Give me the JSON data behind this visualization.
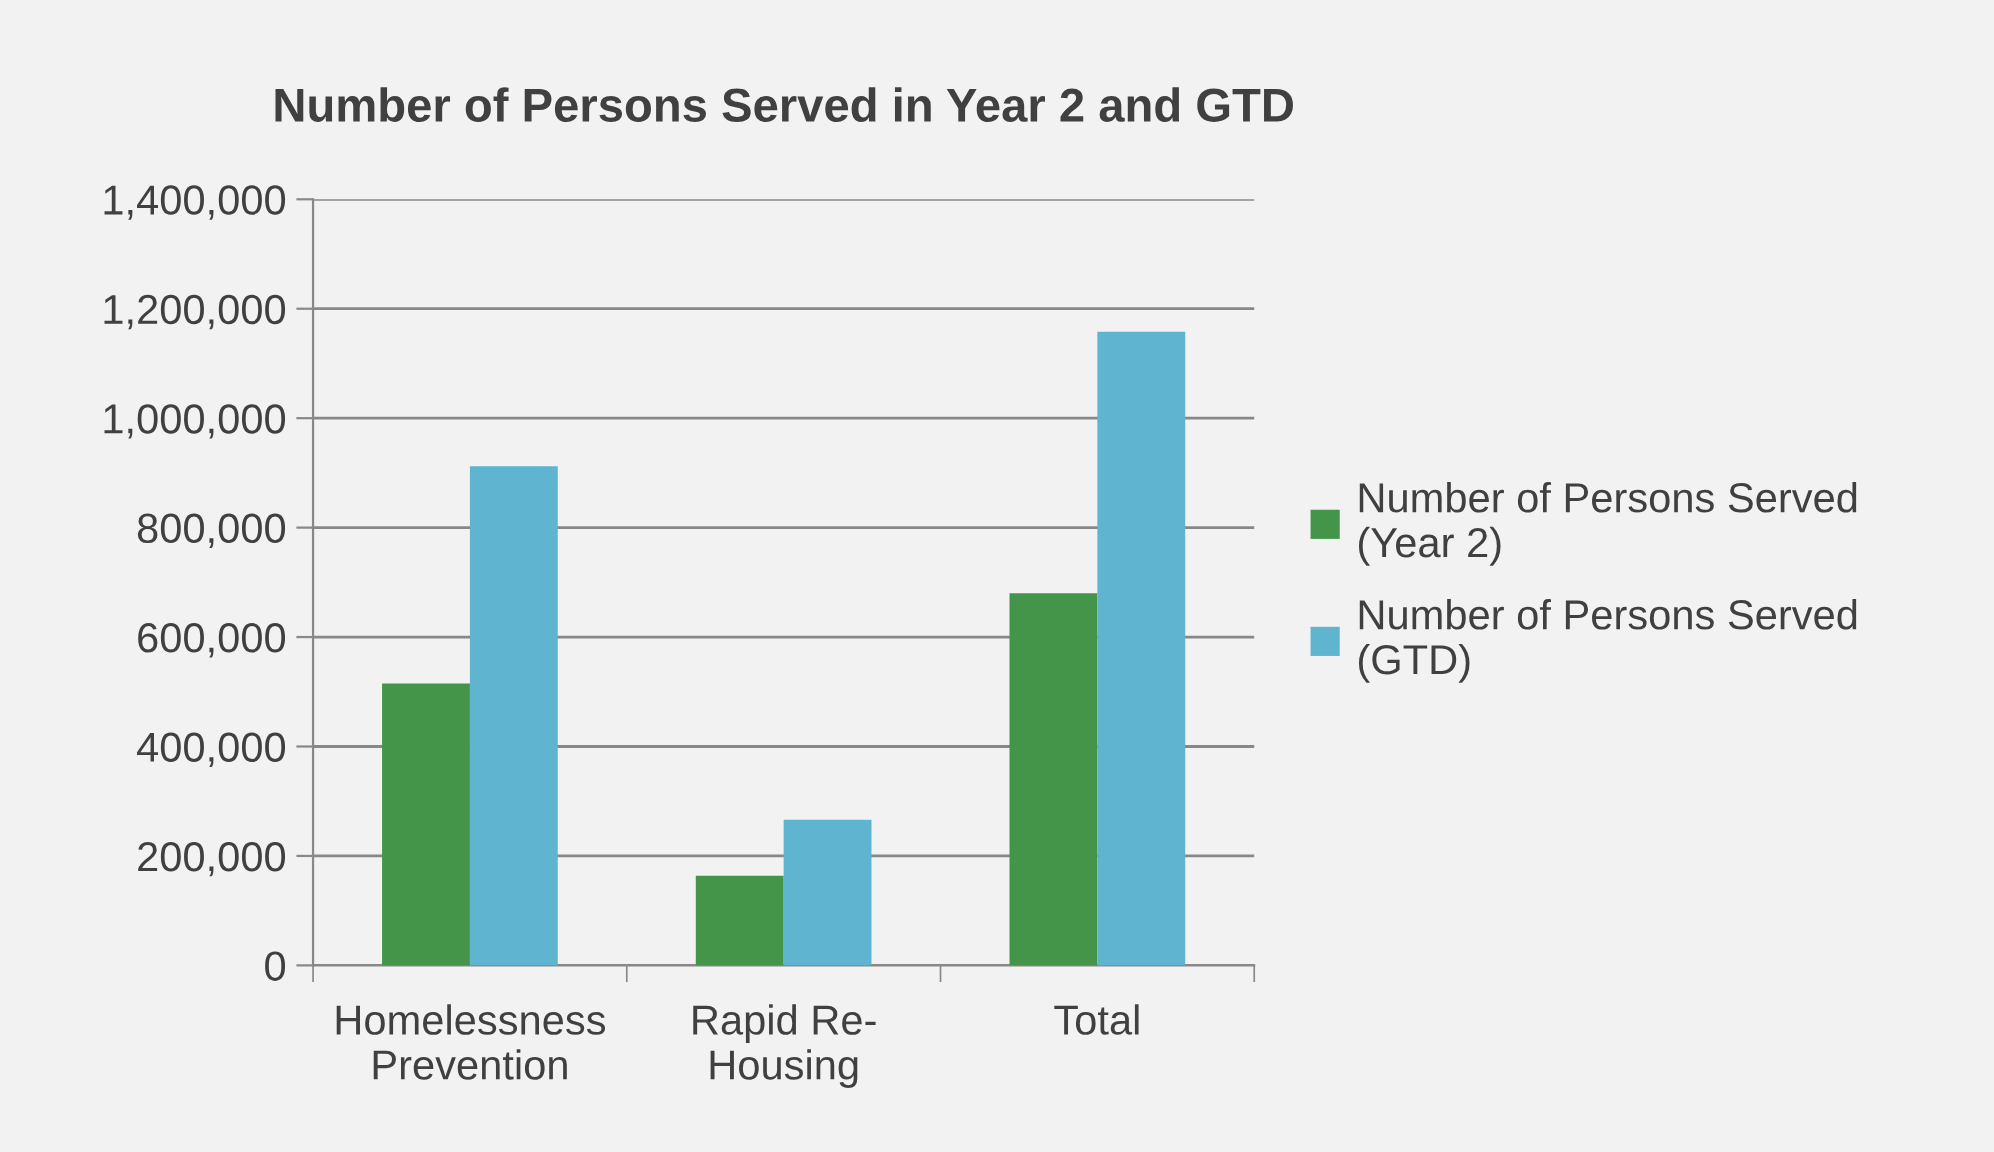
{
  "chart_data": {
    "type": "bar",
    "title": "Number of Persons Served in Year 2 and GTD",
    "categories": [
      "Homelessness\nPrevention",
      "Rapid Re-\nHousing",
      "Total"
    ],
    "series": [
      {
        "name": "Number of Persons Served\n(Year 2)",
        "color": "#44944a",
        "values": [
          515000,
          164000,
          680000
        ]
      },
      {
        "name": "Number of Persons Served\n(GTD)",
        "color": "#5fb4cf",
        "values": [
          912000,
          266000,
          1158000
        ]
      }
    ],
    "ylim": [
      0,
      1400000
    ],
    "yticks": [
      {
        "value": 0,
        "label": "0"
      },
      {
        "value": 200000,
        "label": "200,000"
      },
      {
        "value": 400000,
        "label": "400,000"
      },
      {
        "value": 600000,
        "label": "600,000"
      },
      {
        "value": 800000,
        "label": "800,000"
      },
      {
        "value": 1000000,
        "label": "1,000,000"
      },
      {
        "value": 1200000,
        "label": "1,200,000"
      },
      {
        "value": 1400000,
        "label": "1,400,000"
      }
    ],
    "grid": "y",
    "legend": "right"
  }
}
